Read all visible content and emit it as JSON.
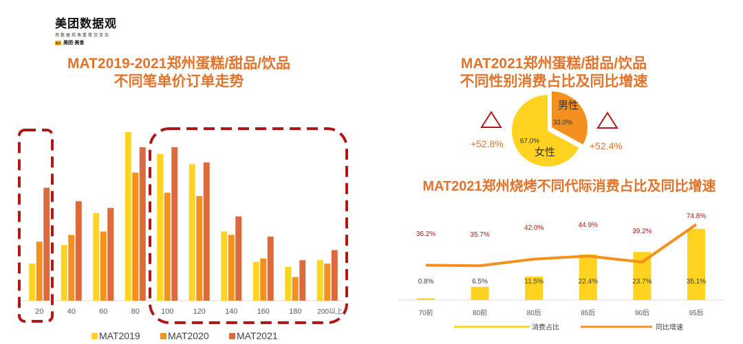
{
  "logo": {
    "main": "美团数据观",
    "sub": "用数据视角看餐饮百态",
    "brand": "美团·美食",
    "badge": "美团"
  },
  "chart1": {
    "title_line1": "MAT2019-2021郑州蛋糕/甜品/饮品",
    "title_line2": "不同笔单价订单走势"
  },
  "chart2": {
    "title_line1": "MAT2021郑州蛋糕/甜品/饮品",
    "title_line2": "不同性别消费占比及同比增速",
    "growth_left": "+52.8%",
    "growth_right": "+52.4%"
  },
  "chart3": {
    "title": "MAT2021郑州烧烤不同代际消费占比及同比增速"
  },
  "colors": {
    "title": "#e1732a",
    "mat2019": "#ffd320",
    "mat2020": "#f4901e",
    "mat2021": "#dd6a3c",
    "pie_female": "#ffd320",
    "pie_male": "#f4901e",
    "line": "#f4901e",
    "highlight": "#b01818"
  },
  "chart_data": [
    {
      "type": "bar",
      "categories": [
        "20",
        "40",
        "60",
        "80",
        "100",
        "120",
        "140",
        "160",
        "180",
        "200以上"
      ],
      "series": [
        {
          "name": "MAT2019",
          "values": [
            22,
            33,
            52,
            100,
            87,
            81,
            41,
            23,
            20,
            24
          ]
        },
        {
          "name": "MAT2020",
          "values": [
            35,
            39,
            41,
            76,
            64,
            62,
            39,
            25,
            14,
            22
          ]
        },
        {
          "name": "MAT2021",
          "values": [
            67,
            59,
            55,
            91,
            91,
            82,
            50,
            38,
            24,
            30
          ]
        }
      ],
      "ylim": [
        0,
        100
      ],
      "legend": "bottom",
      "highlight_groups": [
        [
          "20"
        ],
        [
          "100",
          "120",
          "140",
          "160",
          "180",
          "200以上"
        ]
      ]
    },
    {
      "type": "pie",
      "labels": [
        "男性",
        "女性"
      ],
      "values": [
        33.0,
        67.0
      ],
      "value_labels": [
        "33.0%",
        "67.0%"
      ],
      "growth": [
        "+52.4%",
        "+52.8%"
      ]
    },
    {
      "type": "bar",
      "categories": [
        "70前",
        "80前",
        "80后",
        "85后",
        "90后",
        "95后"
      ],
      "series": [
        {
          "name": "消费占比",
          "values": [
            0.8,
            6.5,
            11.5,
            22.4,
            23.7,
            35.1
          ],
          "labels": [
            "0.8%",
            "6.5%",
            "11.5%",
            "22.4%",
            "23.7%",
            "35.1%"
          ]
        },
        {
          "name": "同比增速",
          "type": "line",
          "values": [
            36.2,
            35.7,
            42.0,
            44.9,
            39.2,
            74.8
          ],
          "labels": [
            "36.2%",
            "35.7%",
            "42.0%",
            "44.9%",
            "39.2%",
            "74.8%"
          ]
        }
      ],
      "legend": "bottom"
    }
  ]
}
